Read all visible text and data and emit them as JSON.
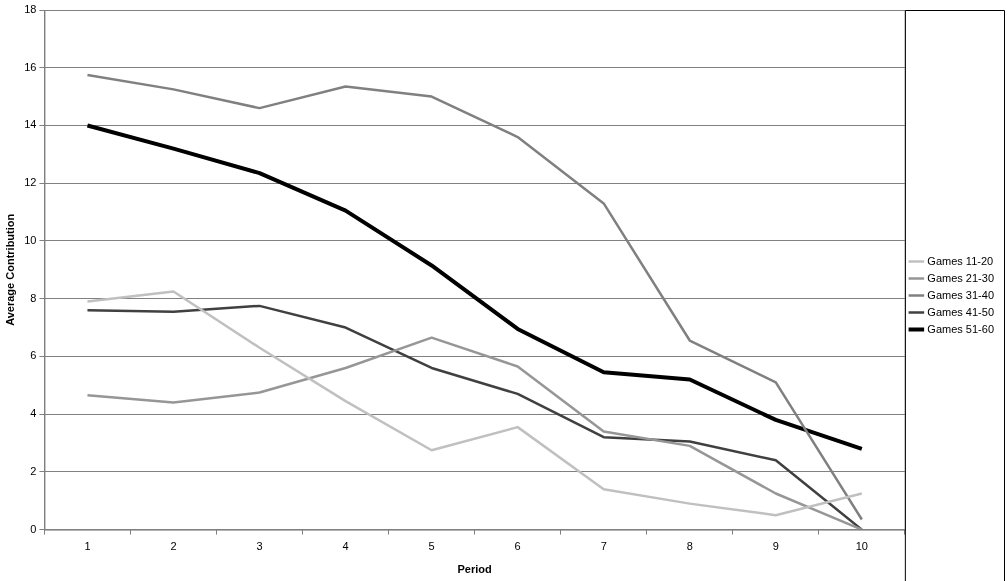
{
  "chart_data": {
    "type": "line",
    "xlabel": "Period",
    "ylabel": "Average Contribution",
    "categories": [
      "1",
      "2",
      "3",
      "4",
      "5",
      "6",
      "7",
      "8",
      "9",
      "10"
    ],
    "series": [
      {
        "name": "Games 11-20",
        "color": "#c0c0c0",
        "values": [
          7.9,
          8.25,
          6.3,
          4.45,
          2.75,
          3.55,
          1.4,
          0.9,
          0.5,
          1.25
        ]
      },
      {
        "name": "Games 21-30",
        "color": "#969696",
        "values": [
          4.65,
          4.4,
          4.75,
          5.6,
          6.65,
          5.65,
          3.4,
          2.9,
          1.25,
          0
        ]
      },
      {
        "name": "Games 31-40",
        "color": "#808080",
        "values": [
          15.75,
          15.25,
          14.6,
          15.35,
          15.0,
          13.6,
          11.3,
          6.55,
          5.1,
          0.35
        ]
      },
      {
        "name": "Games 41-50",
        "color": "#404040",
        "values": [
          7.6,
          7.55,
          7.75,
          7.0,
          5.6,
          4.7,
          3.2,
          3.05,
          2.4,
          0
        ]
      },
      {
        "name": "Games 51-60",
        "color": "#000000",
        "values": [
          14.0,
          13.2,
          12.35,
          11.05,
          9.15,
          6.95,
          5.45,
          5.2,
          3.8,
          2.8
        ]
      }
    ],
    "ylim": [
      0,
      18
    ],
    "yticks": [
      0,
      2,
      4,
      6,
      8,
      10,
      12,
      14,
      16,
      18
    ],
    "grid": "y",
    "legend": "right",
    "marker": "none",
    "line_style": "solid"
  }
}
